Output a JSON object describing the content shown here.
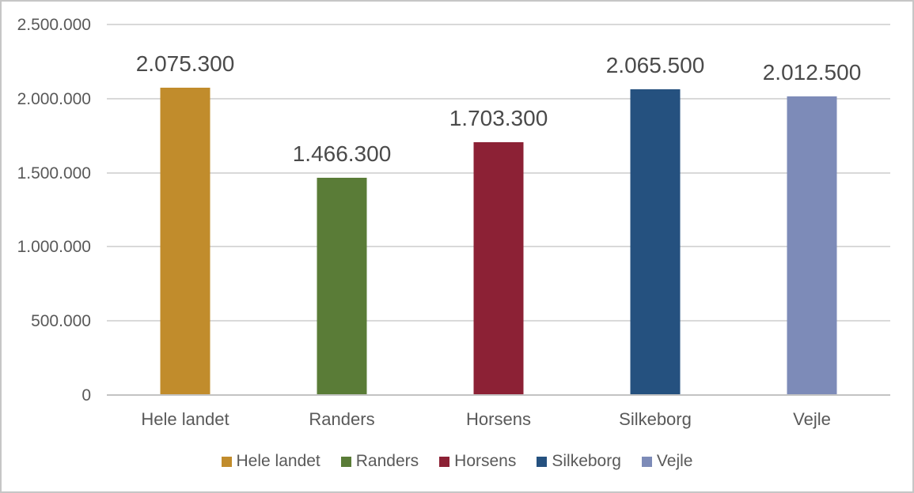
{
  "chart_data": {
    "type": "bar",
    "title": "",
    "xlabel": "",
    "ylabel": "",
    "categories": [
      "Hele landet",
      "Randers",
      "Horsens",
      "Silkeborg",
      "Vejle"
    ],
    "values": [
      2075300,
      1466300,
      1703300,
      2065500,
      2012500
    ],
    "data_labels": [
      "2.075.300",
      "1.466.300",
      "1.703.300",
      "2.065.500",
      "2.012.500"
    ],
    "bar_colors": [
      "#C18C2C",
      "#5A7C37",
      "#8C2135",
      "#25517F",
      "#7D8BB8"
    ],
    "ylim": [
      0,
      2500000
    ],
    "y_ticks": [
      {
        "value": 0,
        "label": "0"
      },
      {
        "value": 500000,
        "label": "500.000"
      },
      {
        "value": 1000000,
        "label": "1.000.000"
      },
      {
        "value": 1500000,
        "label": "1.500.000"
      },
      {
        "value": 2000000,
        "label": "2.000.000"
      },
      {
        "value": 2500000,
        "label": "2.500.000"
      }
    ],
    "grid": "horizontal",
    "gridline_color": "#D9D9D9",
    "axis_line_color": "#C3C3C3",
    "axis_text_color": "#595959",
    "legend": {
      "position": "bottom",
      "entries": [
        {
          "label": "Hele landet",
          "color": "#C18C2C"
        },
        {
          "label": "Randers",
          "color": "#5A7C37"
        },
        {
          "label": "Horsens",
          "color": "#8C2135"
        },
        {
          "label": "Silkeborg",
          "color": "#25517F"
        },
        {
          "label": "Vejle",
          "color": "#7D8BB8"
        }
      ]
    }
  }
}
